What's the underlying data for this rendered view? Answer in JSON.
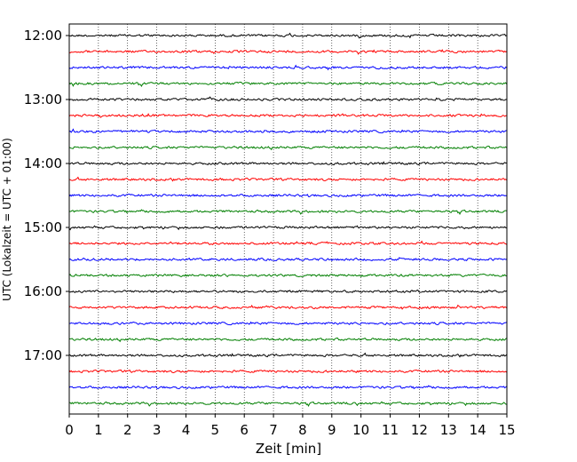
{
  "chart_data": {
    "type": "line",
    "title": "",
    "xlabel": "Zeit  [min]",
    "ylabel": "UTC (Lokalzeit = UTC + 01:00)",
    "xlim": [
      0,
      15
    ],
    "x_ticks": [
      "0",
      "1",
      "2",
      "3",
      "4",
      "5",
      "6",
      "7",
      "8",
      "9",
      "10",
      "11",
      "12",
      "13",
      "14",
      "15"
    ],
    "y_tick_labels": [
      "12:00",
      "13:00",
      "14:00",
      "15:00",
      "16:00",
      "17:00"
    ],
    "grid": "vertical dotted",
    "trace_interval_minutes": 15,
    "trace_colors": [
      "#000000",
      "#ff0000",
      "#0000ff",
      "#007f00"
    ],
    "traces": [
      {
        "start": "12:00",
        "color": "#000000"
      },
      {
        "start": "12:15",
        "color": "#ff0000"
      },
      {
        "start": "12:30",
        "color": "#0000ff"
      },
      {
        "start": "12:45",
        "color": "#007f00"
      },
      {
        "start": "13:00",
        "color": "#000000"
      },
      {
        "start": "13:15",
        "color": "#ff0000"
      },
      {
        "start": "13:30",
        "color": "#0000ff"
      },
      {
        "start": "13:45",
        "color": "#007f00"
      },
      {
        "start": "14:00",
        "color": "#000000"
      },
      {
        "start": "14:15",
        "color": "#ff0000"
      },
      {
        "start": "14:30",
        "color": "#0000ff"
      },
      {
        "start": "14:45",
        "color": "#007f00"
      },
      {
        "start": "15:00",
        "color": "#000000"
      },
      {
        "start": "15:15",
        "color": "#ff0000"
      },
      {
        "start": "15:30",
        "color": "#0000ff"
      },
      {
        "start": "15:45",
        "color": "#007f00"
      },
      {
        "start": "16:00",
        "color": "#000000"
      },
      {
        "start": "16:15",
        "color": "#ff0000"
      },
      {
        "start": "16:30",
        "color": "#0000ff"
      },
      {
        "start": "16:45",
        "color": "#007f00"
      },
      {
        "start": "17:00",
        "color": "#000000"
      },
      {
        "start": "17:15",
        "color": "#ff0000"
      },
      {
        "start": "17:30",
        "color": "#0000ff"
      },
      {
        "start": "17:45",
        "color": "#007f00"
      }
    ]
  }
}
